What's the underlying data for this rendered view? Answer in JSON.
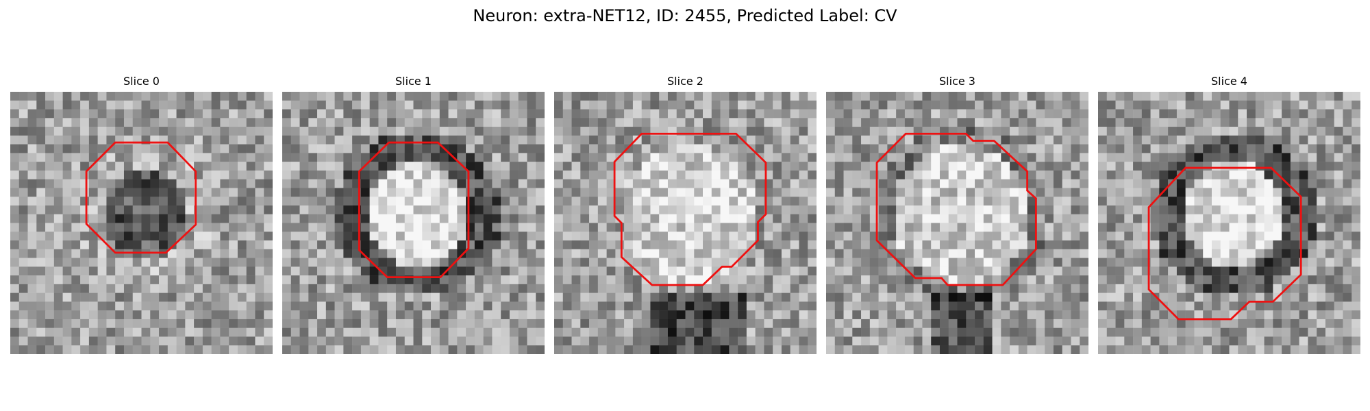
{
  "figure": {
    "title": "Neuron: extra-NET12, ID: 2455, Predicted Label: CV"
  },
  "colors": {
    "contour": "#ee1111",
    "background": "#ffffff"
  },
  "panels": [
    {
      "title": "Slice 0",
      "seed": 11,
      "mode": "dark-center"
    },
    {
      "title": "Slice 1",
      "seed": 23,
      "mode": "bright-center-dark-ring"
    },
    {
      "title": "Slice 2",
      "seed": 37,
      "mode": "bright-center-dark-below"
    },
    {
      "title": "Slice 3",
      "seed": 53,
      "mode": "bright-center"
    },
    {
      "title": "Slice 4",
      "seed": 71,
      "mode": "bright-center-dark-ring"
    }
  ]
}
